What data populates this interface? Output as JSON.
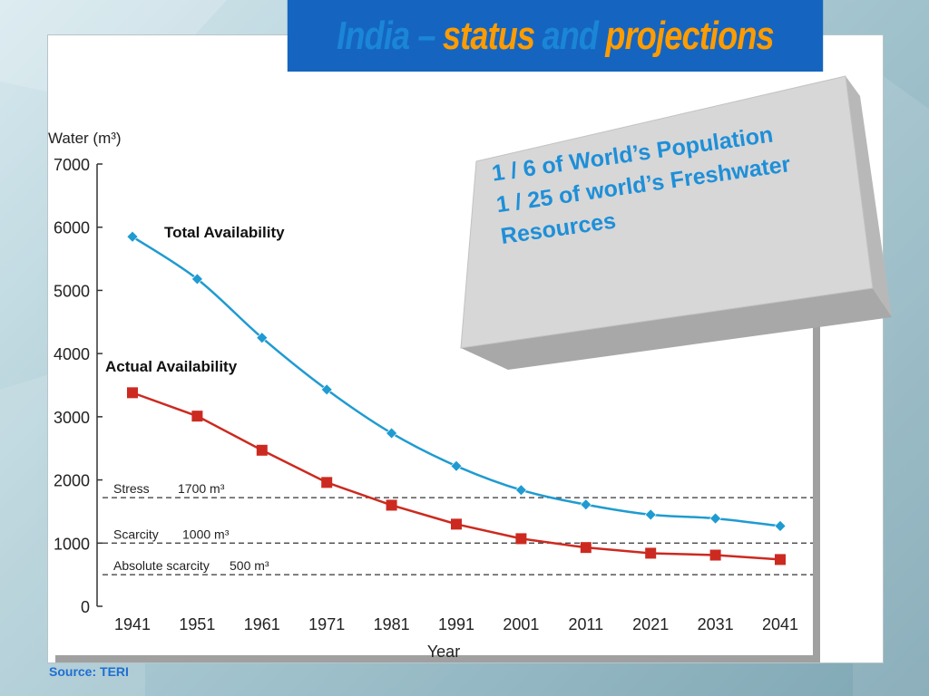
{
  "title": {
    "part1": "India –",
    "part2": "status",
    "part3": "and",
    "part4": "projections"
  },
  "info_box": {
    "line1": "1 / 6  of World’s Population",
    "line2": "1 / 25  of world’s Freshwater",
    "line3": "Resources"
  },
  "source": "Source: TERI",
  "colors": {
    "banner": "#1565c0",
    "title_blue": "#1b86d6",
    "title_orange": "#ff9c00",
    "total_series": "#1f9bd1",
    "actual_series": "#cc2a20"
  },
  "chart_data": {
    "type": "line",
    "ylabel": "Water (m³)",
    "xlabel": "Year",
    "ylim": [
      0,
      7000
    ],
    "y_ticks": [
      "0",
      "1000",
      "2000",
      "3000",
      "4000",
      "5000",
      "6000",
      "7000"
    ],
    "x": [
      "1941",
      "1951",
      "1961",
      "1971",
      "1981",
      "1991",
      "2001",
      "2011",
      "2021",
      "2031",
      "2041"
    ],
    "series": [
      {
        "name": "Total Availability",
        "marker": "diamond",
        "values": [
          5850,
          5180,
          4250,
          3430,
          2740,
          2220,
          1840,
          1610,
          1450,
          1390,
          1270
        ]
      },
      {
        "name": "Actual Availability",
        "marker": "square",
        "values": [
          3380,
          3010,
          2470,
          1960,
          1600,
          1300,
          1070,
          930,
          840,
          810,
          740
        ]
      }
    ],
    "reference_lines": [
      {
        "name": "Stress",
        "label": "1700 m³",
        "value": 1720
      },
      {
        "name": "Scarcity",
        "label": "1000 m³",
        "value": 1000
      },
      {
        "name": "Absolute scarcity",
        "label": "500 m³",
        "value": 500
      }
    ],
    "grid": false
  }
}
